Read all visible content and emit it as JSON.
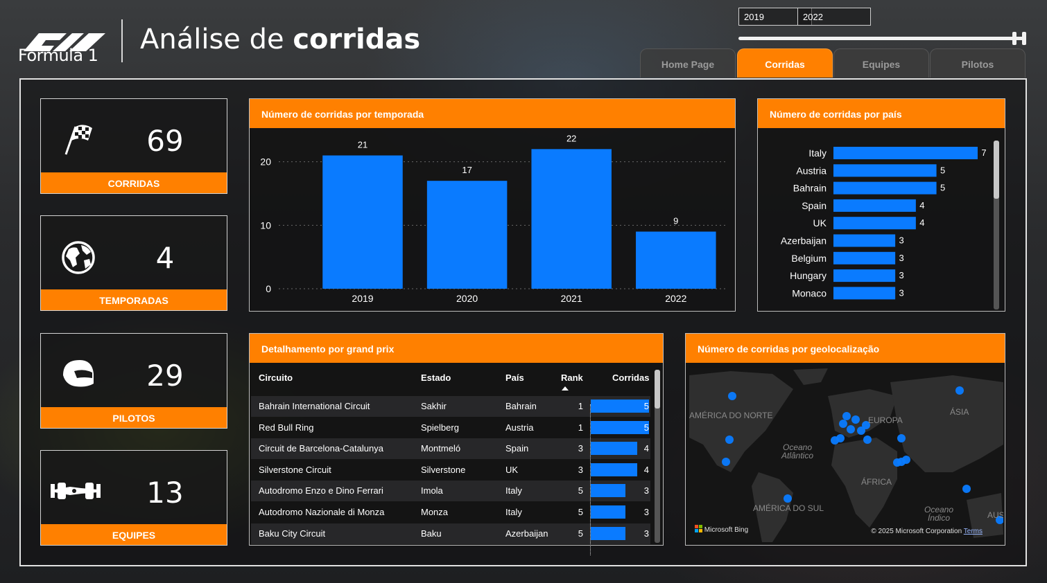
{
  "header": {
    "logo_text": "Formula 1",
    "title_regular": "Análise de ",
    "title_bold": "corridas"
  },
  "slicer": {
    "start_year": "2019",
    "end_year": "2022"
  },
  "tabs": [
    {
      "label": "Home Page",
      "active": false
    },
    {
      "label": "Corridas",
      "active": true
    },
    {
      "label": "Equipes",
      "active": false
    },
    {
      "label": "Pilotos",
      "active": false
    }
  ],
  "kpis": [
    {
      "value": "69",
      "label": "CORRIDAS",
      "icon": "checkered-flag-icon"
    },
    {
      "value": "4",
      "label": "TEMPORADAS",
      "icon": "globe-icon"
    },
    {
      "value": "29",
      "label": "PILOTOS",
      "icon": "helmet-icon"
    },
    {
      "value": "13",
      "label": "EQUIPES",
      "icon": "race-car-icon"
    }
  ],
  "colors": {
    "accent": "#ff8000",
    "bar": "#0a7bff"
  },
  "chart_data": [
    {
      "type": "bar",
      "title": "Número de corridas por temporada",
      "categories": [
        "2019",
        "2020",
        "2021",
        "2022"
      ],
      "values": [
        21,
        17,
        22,
        9
      ],
      "yticks": [
        0,
        10,
        20
      ],
      "ylim": [
        0,
        24
      ],
      "grid": true
    },
    {
      "type": "bar",
      "orientation": "horizontal",
      "title": "Número de corridas por país",
      "categories": [
        "Italy",
        "Austria",
        "Bahrain",
        "Spain",
        "UK",
        "Azerbaijan",
        "Belgium",
        "Hungary",
        "Monaco"
      ],
      "values": [
        7,
        5,
        5,
        4,
        4,
        3,
        3,
        3,
        3
      ]
    },
    {
      "type": "table",
      "title": "Detalhamento por grand prix",
      "columns": [
        "Circuito",
        "Estado",
        "País",
        "Rank",
        "Corridas"
      ],
      "rows": [
        {
          "circuito": "Bahrain International Circuit",
          "estado": "Sakhir",
          "pais": "Bahrain",
          "rank": 1,
          "corridas": 5
        },
        {
          "circuito": "Red Bull Ring",
          "estado": "Spielberg",
          "pais": "Austria",
          "rank": 1,
          "corridas": 5
        },
        {
          "circuito": "Circuit de Barcelona-Catalunya",
          "estado": "Montmeló",
          "pais": "Spain",
          "rank": 3,
          "corridas": 4
        },
        {
          "circuito": "Silverstone Circuit",
          "estado": "Silverstone",
          "pais": "UK",
          "rank": 3,
          "corridas": 4
        },
        {
          "circuito": "Autodromo Enzo e Dino Ferrari",
          "estado": "Imola",
          "pais": "Italy",
          "rank": 5,
          "corridas": 3
        },
        {
          "circuito": "Autodromo Nazionale di Monza",
          "estado": "Monza",
          "pais": "Italy",
          "rank": 5,
          "corridas": 3
        },
        {
          "circuito": "Baku City Circuit",
          "estado": "Baku",
          "pais": "Azerbaijan",
          "rank": 5,
          "corridas": 3
        }
      ]
    }
  ],
  "map": {
    "title": "Número de corridas por geolocalização",
    "labels": {
      "north_america": "AMÉRICA DO NORTE",
      "europe": "EUROPA",
      "asia": "ÁSIA",
      "atlantic": "Oceano Atlântico",
      "africa": "ÁFRICA",
      "south_america": "AMÉRICA DO SUL",
      "indian": "Oceano Índico",
      "australia": "AUS"
    },
    "bing": "Microsoft Bing",
    "copyright": "© 2025 Microsoft Corporation",
    "terms": "Terms"
  }
}
